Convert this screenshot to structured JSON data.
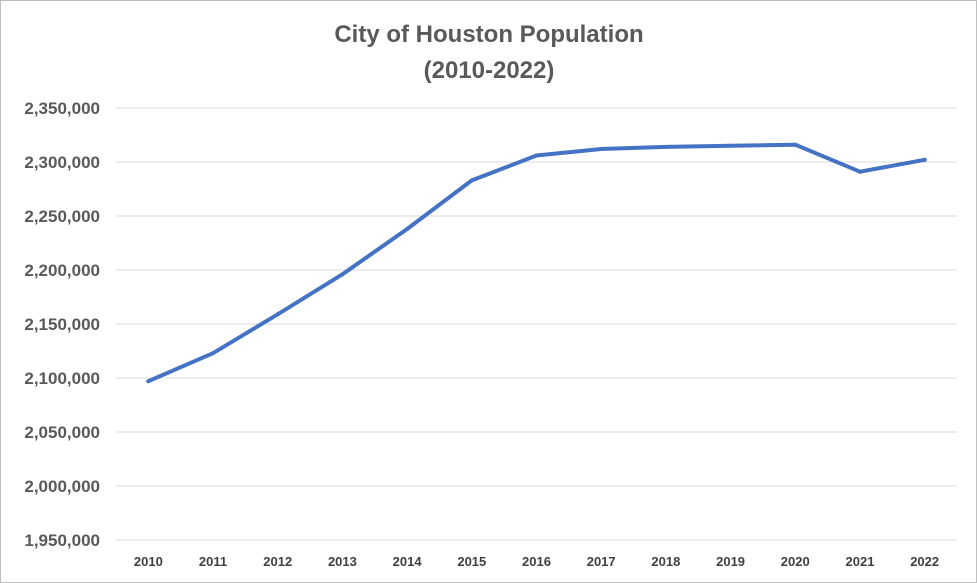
{
  "chart_data": {
    "type": "line",
    "title": "City of Houston Population",
    "subtitle": "(2010-2022)",
    "xlabel": "",
    "ylabel": "",
    "grid": true,
    "legend": "none",
    "ylim": [
      1950000,
      2350000
    ],
    "yticks": [
      1950000,
      2000000,
      2050000,
      2100000,
      2150000,
      2200000,
      2250000,
      2300000,
      2350000
    ],
    "ytick_labels": [
      "1,950,000",
      "2,000,000",
      "2,050,000",
      "2,100,000",
      "2,150,000",
      "2,200,000",
      "2,250,000",
      "2,300,000",
      "2,350,000"
    ],
    "categories": [
      "2010",
      "2011",
      "2012",
      "2013",
      "2014",
      "2015",
      "2016",
      "2017",
      "2018",
      "2019",
      "2020",
      "2021",
      "2022"
    ],
    "series": [
      {
        "name": "Population",
        "color": "#4472c4",
        "values": [
          2097000,
          2123000,
          2159000,
          2196000,
          2238000,
          2283000,
          2306000,
          2312000,
          2314000,
          2315000,
          2316000,
          2291000,
          2302000
        ]
      }
    ]
  }
}
